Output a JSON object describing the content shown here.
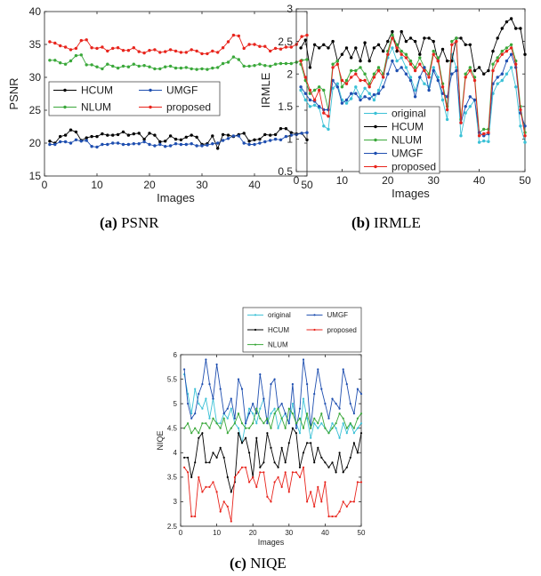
{
  "captions": {
    "a": {
      "label": "(a)",
      "text": " PSNR"
    },
    "b": {
      "label": "(b)",
      "text": " IRMLE"
    },
    "c": {
      "label": "(c)",
      "text": " NIQE"
    }
  },
  "chart_data": [
    {
      "id": "psnr",
      "type": "line",
      "xlabel": "Images",
      "ylabel": "PSNR",
      "xlim": [
        0,
        50
      ],
      "ylim": [
        15,
        40
      ],
      "xticks": [
        "0",
        "10",
        "20",
        "30",
        "40",
        "50"
      ],
      "yticks": [
        "15",
        "20",
        "25",
        "30",
        "35",
        "40"
      ],
      "grid": false,
      "legend": {
        "position": "center",
        "columns": 2
      },
      "x": [
        1,
        2,
        3,
        4,
        5,
        6,
        7,
        8,
        9,
        10,
        11,
        12,
        13,
        14,
        15,
        16,
        17,
        18,
        19,
        20,
        21,
        22,
        23,
        24,
        25,
        26,
        27,
        28,
        29,
        30,
        31,
        32,
        33,
        34,
        35,
        36,
        37,
        38,
        39,
        40,
        41,
        42,
        43,
        44,
        45,
        46,
        47,
        48,
        49,
        50
      ],
      "series": [
        {
          "name": "HCUM",
          "color": "#000000",
          "values": [
            20.3,
            20.0,
            21.0,
            21.2,
            22.0,
            21.7,
            20.4,
            20.8,
            21.0,
            21.0,
            21.4,
            21.2,
            21.2,
            21.3,
            21.7,
            21.2,
            21.4,
            21.5,
            20.6,
            21.5,
            21.2,
            20.2,
            20.3,
            21.1,
            20.6,
            20.5,
            20.9,
            21.2,
            20.9,
            19.8,
            19.9,
            21.1,
            19.2,
            21.3,
            21.2,
            21.0,
            21.3,
            21.5,
            20.3,
            20.5,
            20.6,
            21.3,
            21.2,
            21.3,
            22.2,
            22.2,
            21.6,
            21.4,
            21.5,
            20.5
          ]
        },
        {
          "name": "UMGF",
          "color": "#1f4fb0",
          "values": [
            19.8,
            19.8,
            20.2,
            20.2,
            20.0,
            20.5,
            20.3,
            20.4,
            19.5,
            19.4,
            19.8,
            19.8,
            20.0,
            20.0,
            19.8,
            19.8,
            19.9,
            19.9,
            20.2,
            19.8,
            19.6,
            19.8,
            19.5,
            19.6,
            19.9,
            19.8,
            19.8,
            19.9,
            19.6,
            19.6,
            19.7,
            19.9,
            20.0,
            20.4,
            20.7,
            21.1,
            21.1,
            20.0,
            19.8,
            19.8,
            20.0,
            20.2,
            20.4,
            20.6,
            20.5,
            21.0,
            21.2,
            21.3,
            21.5,
            21.6
          ]
        },
        {
          "name": "NLUM",
          "color": "#3aa83a",
          "values": [
            32.6,
            32.6,
            32.2,
            32.0,
            32.5,
            33.3,
            33.4,
            31.9,
            31.9,
            31.6,
            31.3,
            32.0,
            31.7,
            31.4,
            31.7,
            31.6,
            32.0,
            31.7,
            31.8,
            31.6,
            31.3,
            31.3,
            31.6,
            31.7,
            31.4,
            31.4,
            31.5,
            31.3,
            31.2,
            31.3,
            31.2,
            31.4,
            31.5,
            32.1,
            32.3,
            33.1,
            32.7,
            31.7,
            31.7,
            31.8,
            32.0,
            31.8,
            31.7,
            32.0,
            32.1,
            32.1,
            32.1,
            32.3,
            32.6,
            32.7
          ]
        },
        {
          "name": "proposed",
          "color": "#e8241c",
          "values": [
            35.4,
            35.2,
            34.8,
            34.6,
            34.2,
            34.4,
            35.6,
            35.7,
            34.5,
            34.4,
            34.6,
            34.0,
            34.4,
            34.5,
            34.1,
            34.1,
            34.5,
            33.9,
            33.7,
            34.1,
            34.2,
            33.8,
            33.9,
            34.2,
            34.0,
            33.8,
            33.8,
            34.2,
            34.0,
            33.6,
            33.6,
            34.0,
            33.8,
            34.5,
            35.4,
            36.4,
            36.3,
            34.4,
            35.0,
            35.0,
            34.7,
            34.7,
            34.0,
            34.4,
            34.3,
            34.6,
            34.6,
            35.0,
            36.2,
            36.4
          ]
        }
      ]
    },
    {
      "id": "irmle",
      "type": "line",
      "xlabel": "Images",
      "ylabel": "IRMLE",
      "xlim": [
        0,
        50
      ],
      "ylim": [
        0.5,
        3
      ],
      "xticks": [
        "0",
        "10",
        "20",
        "30",
        "40",
        "50"
      ],
      "yticks": [
        "0.5",
        "1",
        "1.5",
        "2",
        "2.5",
        "3"
      ],
      "grid": false,
      "legend": {
        "position": "bottom-left",
        "columns": 1
      },
      "x": [
        1,
        2,
        3,
        4,
        5,
        6,
        7,
        8,
        9,
        10,
        11,
        12,
        13,
        14,
        15,
        16,
        17,
        18,
        19,
        20,
        21,
        22,
        23,
        24,
        25,
        26,
        27,
        28,
        29,
        30,
        31,
        32,
        33,
        34,
        35,
        36,
        37,
        38,
        39,
        40,
        41,
        42,
        43,
        44,
        45,
        46,
        47,
        48,
        49,
        50
      ],
      "series": [
        {
          "name": "original",
          "color": "#3bc1d6",
          "values": [
            1.75,
            1.6,
            1.5,
            1.52,
            1.48,
            1.2,
            1.15,
            1.78,
            1.85,
            1.6,
            1.55,
            1.62,
            1.8,
            1.65,
            1.78,
            1.7,
            1.6,
            1.75,
            1.95,
            2.25,
            2.4,
            2.2,
            2.25,
            2.1,
            1.95,
            1.75,
            1.95,
            1.85,
            1.8,
            2.1,
            1.95,
            1.6,
            1.3,
            2.3,
            2.1,
            1.05,
            1.4,
            1.5,
            1.6,
            0.95,
            0.97,
            0.96,
            1.7,
            1.85,
            1.9,
            2.0,
            2.1,
            1.8,
            1.2,
            0.95
          ]
        },
        {
          "name": "HCUM",
          "color": "#000000",
          "values": [
            2.4,
            2.52,
            2.1,
            2.45,
            2.4,
            2.45,
            2.4,
            2.5,
            2.2,
            2.3,
            2.4,
            2.25,
            2.4,
            2.2,
            2.48,
            2.2,
            2.4,
            2.45,
            2.35,
            2.5,
            2.65,
            2.35,
            2.65,
            2.5,
            2.55,
            2.5,
            2.3,
            2.55,
            2.55,
            2.5,
            2.2,
            2.38,
            2.2,
            2.2,
            2.55,
            2.55,
            2.45,
            2.45,
            2.05,
            2.1,
            2.0,
            2.05,
            2.35,
            2.55,
            2.7,
            2.8,
            2.85,
            2.7,
            2.7,
            2.3
          ]
        },
        {
          "name": "NLUM",
          "color": "#3aa83a",
          "values": [
            2.15,
            1.9,
            1.7,
            1.75,
            1.8,
            1.75,
            1.45,
            2.15,
            2.2,
            1.8,
            1.9,
            2.05,
            2.05,
            2.1,
            2.0,
            1.85,
            2.0,
            2.1,
            2.0,
            2.35,
            2.6,
            2.45,
            2.35,
            2.3,
            2.2,
            2.1,
            2.25,
            2.1,
            2.0,
            2.35,
            2.25,
            1.85,
            1.5,
            2.5,
            2.55,
            1.3,
            2.0,
            2.1,
            1.95,
            1.1,
            1.15,
            1.15,
            2.15,
            2.25,
            2.35,
            2.4,
            2.45,
            2.2,
            1.5,
            1.1
          ]
        },
        {
          "name": "UMGF",
          "color": "#1f4fb0",
          "values": [
            1.8,
            1.7,
            1.6,
            1.58,
            1.5,
            1.45,
            1.45,
            1.9,
            1.8,
            1.55,
            1.6,
            1.7,
            1.7,
            1.6,
            1.65,
            1.62,
            1.68,
            1.7,
            1.8,
            2.0,
            2.2,
            2.05,
            2.1,
            2.0,
            1.9,
            1.65,
            1.95,
            2.1,
            1.75,
            2.05,
            1.9,
            1.7,
            1.65,
            2.0,
            2.05,
            1.25,
            1.5,
            1.65,
            1.6,
            1.1,
            1.05,
            1.08,
            1.85,
            1.95,
            2.0,
            2.2,
            2.3,
            2.1,
            1.4,
            1.2
          ]
        },
        {
          "name": "proposed",
          "color": "#e8241c",
          "values": [
            2.2,
            1.95,
            1.75,
            1.6,
            1.75,
            1.4,
            1.35,
            2.1,
            2.15,
            1.9,
            1.85,
            1.95,
            2.0,
            1.9,
            1.9,
            1.8,
            1.95,
            2.05,
            1.95,
            2.3,
            2.55,
            2.4,
            2.3,
            2.25,
            2.15,
            2.05,
            2.15,
            2.05,
            1.95,
            2.3,
            2.2,
            1.8,
            1.45,
            2.45,
            2.5,
            1.25,
            1.95,
            2.05,
            1.9,
            1.05,
            1.08,
            1.1,
            2.05,
            2.2,
            2.3,
            2.35,
            2.4,
            2.15,
            1.45,
            1.05
          ]
        }
      ]
    },
    {
      "id": "niqe",
      "type": "line",
      "xlabel": "Images",
      "ylabel": "NIQE",
      "xlim": [
        0,
        50
      ],
      "ylim": [
        2.5,
        6
      ],
      "xticks": [
        "0",
        "10",
        "20",
        "30",
        "40",
        "50"
      ],
      "yticks": [
        "2.5",
        "3",
        "3.5",
        "4",
        "4.5",
        "5",
        "5.5",
        "6"
      ],
      "grid": false,
      "legend": {
        "position": "above",
        "columns": 2
      },
      "x": [
        1,
        2,
        3,
        4,
        5,
        6,
        7,
        8,
        9,
        10,
        11,
        12,
        13,
        14,
        15,
        16,
        17,
        18,
        19,
        20,
        21,
        22,
        23,
        24,
        25,
        26,
        27,
        28,
        29,
        30,
        31,
        32,
        33,
        34,
        35,
        36,
        37,
        38,
        39,
        40,
        41,
        42,
        43,
        44,
        45,
        46,
        47,
        48,
        49,
        50
      ],
      "series": [
        {
          "name": "original",
          "color": "#3bc1d6",
          "values": [
            5.6,
            5.2,
            4.8,
            5.3,
            5.0,
            4.9,
            5.1,
            4.7,
            5.1,
            4.6,
            4.6,
            4.8,
            4.7,
            4.9,
            4.6,
            4.5,
            4.2,
            4.6,
            4.9,
            4.8,
            4.6,
            4.9,
            5.1,
            4.6,
            4.8,
            4.9,
            4.5,
            4.7,
            4.8,
            4.6,
            5.0,
            4.6,
            4.4,
            5.1,
            4.7,
            4.3,
            4.6,
            4.5,
            4.6,
            4.5,
            4.4,
            4.6,
            4.5,
            4.3,
            4.6,
            4.4,
            4.6,
            4.4,
            4.5,
            4.6
          ]
        },
        {
          "name": "UMGF",
          "color": "#1f4fb0",
          "values": [
            5.7,
            5.0,
            4.7,
            4.8,
            5.2,
            5.4,
            5.9,
            5.4,
            5.1,
            5.8,
            5.3,
            4.8,
            4.9,
            5.1,
            4.7,
            5.5,
            5.3,
            4.6,
            4.8,
            5.0,
            4.8,
            5.6,
            5.1,
            4.6,
            5.4,
            5.5,
            4.9,
            5.0,
            4.8,
            4.6,
            5.4,
            4.5,
            4.9,
            5.9,
            5.4,
            4.5,
            5.2,
            5.7,
            5.3,
            5.0,
            4.7,
            5.1,
            5.0,
            4.9,
            5.7,
            5.4,
            5.0,
            4.8,
            5.3,
            5.2
          ]
        },
        {
          "name": "HCUM",
          "color": "#000000",
          "values": [
            3.9,
            3.9,
            3.5,
            3.8,
            4.3,
            4.4,
            3.8,
            3.8,
            4.0,
            3.9,
            4.1,
            3.9,
            3.5,
            3.2,
            3.4,
            4.4,
            4.2,
            4.3,
            4.0,
            3.5,
            4.3,
            3.7,
            3.8,
            4.4,
            4.1,
            3.8,
            3.7,
            4.1,
            3.8,
            4.2,
            4.5,
            4.4,
            3.7,
            4.0,
            4.2,
            4.2,
            3.8,
            4.1,
            3.9,
            3.8,
            3.7,
            3.8,
            3.6,
            4.0,
            3.6,
            3.7,
            3.9,
            4.2,
            4.0,
            4.4
          ]
        },
        {
          "name": "proposed",
          "color": "#e8241c",
          "values": [
            3.7,
            3.6,
            2.7,
            2.7,
            3.5,
            3.2,
            3.3,
            3.3,
            3.4,
            3.2,
            2.8,
            3.0,
            2.9,
            2.6,
            3.5,
            3.6,
            3.7,
            3.7,
            3.4,
            3.5,
            3.3,
            3.6,
            3.6,
            3.1,
            3.0,
            3.4,
            3.5,
            3.3,
            3.6,
            3.2,
            3.6,
            3.6,
            3.5,
            3.7,
            3.0,
            3.2,
            2.9,
            3.3,
            3.0,
            3.4,
            2.7,
            2.7,
            2.7,
            2.8,
            3.0,
            2.9,
            3.0,
            3.0,
            3.4,
            3.4
          ]
        },
        {
          "name": "NLUM",
          "color": "#3aa83a",
          "values": [
            4.5,
            4.6,
            4.4,
            4.5,
            4.4,
            4.6,
            4.6,
            4.5,
            4.7,
            4.6,
            4.5,
            4.7,
            4.4,
            4.5,
            4.6,
            4.8,
            4.6,
            4.5,
            4.5,
            4.6,
            4.9,
            4.7,
            4.6,
            4.7,
            4.5,
            4.8,
            4.9,
            4.7,
            4.5,
            4.9,
            4.8,
            4.6,
            4.7,
            4.5,
            4.8,
            4.5,
            4.7,
            4.6,
            4.8,
            4.5,
            4.4,
            4.5,
            4.6,
            4.8,
            4.7,
            4.5,
            4.6,
            4.5,
            4.7,
            4.8
          ]
        }
      ]
    }
  ]
}
